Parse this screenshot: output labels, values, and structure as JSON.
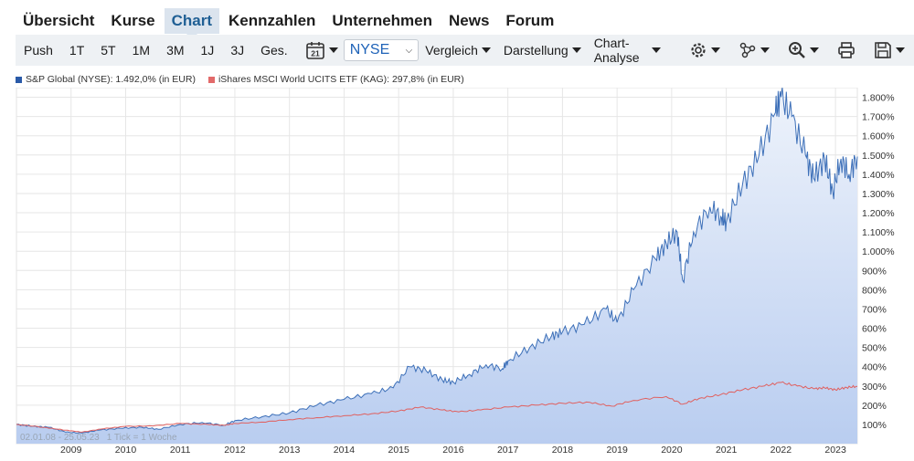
{
  "nav": {
    "items": [
      {
        "label": "Übersicht",
        "active": false
      },
      {
        "label": "Kurse",
        "active": false
      },
      {
        "label": "Chart",
        "active": true
      },
      {
        "label": "Kennzahlen",
        "active": false
      },
      {
        "label": "Unternehmen",
        "active": false
      },
      {
        "label": "News",
        "active": false
      },
      {
        "label": "Forum",
        "active": false
      }
    ]
  },
  "toolbar": {
    "ranges": [
      "Push",
      "1T",
      "5T",
      "1M",
      "3M",
      "1J",
      "3J",
      "Ges."
    ],
    "calendar_day": "21",
    "exchange": "NYSE",
    "menus": [
      "Vergleich",
      "Darstellung",
      "Chart-Analyse"
    ],
    "icons": [
      "settings-icon",
      "indicators-icon",
      "zoom-icon",
      "print-icon",
      "save-icon"
    ]
  },
  "legend": {
    "entries": [
      {
        "text": "S&P Global (NYSE): 1.492,0% (in EUR)",
        "color": "#2a5aa8"
      },
      {
        "text": "iShares MSCI World UCITS ETF (KAG): 297,8% (in EUR)",
        "color": "#e26a6a"
      }
    ]
  },
  "chart_data": {
    "type": "area",
    "date_range_label": "02.01.08 - 25.05.23",
    "tick_label": "1 Tick = 1 Woche",
    "x_ticks": [
      "2009",
      "2010",
      "2011",
      "2012",
      "2013",
      "2014",
      "2015",
      "2016",
      "2017",
      "2018",
      "2019",
      "2020",
      "2021",
      "2022",
      "2023"
    ],
    "y_ticks": [
      "100%",
      "200%",
      "300%",
      "400%",
      "500%",
      "600%",
      "700%",
      "800%",
      "900%",
      "1.000%",
      "1.100%",
      "1.200%",
      "1.300%",
      "1.400%",
      "1.500%",
      "1.600%",
      "1.700%",
      "1.800%"
    ],
    "ylim": [
      0,
      1850
    ],
    "xlim": [
      2008.0,
      2023.4
    ],
    "grid": true,
    "series": [
      {
        "name": "S&P Global (NYSE)",
        "color": "#3c6fb8",
        "fill": true,
        "points": [
          [
            2008.0,
            100
          ],
          [
            2008.3,
            90
          ],
          [
            2008.6,
            85
          ],
          [
            2008.9,
            60
          ],
          [
            2009.2,
            55
          ],
          [
            2009.5,
            70
          ],
          [
            2009.9,
            80
          ],
          [
            2010.3,
            85
          ],
          [
            2010.6,
            75
          ],
          [
            2011.0,
            100
          ],
          [
            2011.4,
            110
          ],
          [
            2011.8,
            95
          ],
          [
            2012.0,
            120
          ],
          [
            2012.5,
            140
          ],
          [
            2013.0,
            160
          ],
          [
            2013.5,
            200
          ],
          [
            2014.0,
            230
          ],
          [
            2014.5,
            260
          ],
          [
            2014.9,
            290
          ],
          [
            2015.2,
            400
          ],
          [
            2015.5,
            380
          ],
          [
            2015.8,
            330
          ],
          [
            2016.0,
            320
          ],
          [
            2016.3,
            360
          ],
          [
            2016.6,
            410
          ],
          [
            2016.9,
            390
          ],
          [
            2017.0,
            430
          ],
          [
            2017.4,
            500
          ],
          [
            2017.8,
            560
          ],
          [
            2018.0,
            580
          ],
          [
            2018.4,
            620
          ],
          [
            2018.8,
            700
          ],
          [
            2019.0,
            630
          ],
          [
            2019.3,
            800
          ],
          [
            2019.7,
            960
          ],
          [
            2019.9,
            1040
          ],
          [
            2020.1,
            1100
          ],
          [
            2020.2,
            850
          ],
          [
            2020.4,
            1100
          ],
          [
            2020.7,
            1230
          ],
          [
            2020.9,
            1180
          ],
          [
            2021.0,
            1150
          ],
          [
            2021.3,
            1350
          ],
          [
            2021.6,
            1500
          ],
          [
            2021.9,
            1720
          ],
          [
            2022.0,
            1800
          ],
          [
            2022.2,
            1700
          ],
          [
            2022.45,
            1500
          ],
          [
            2022.6,
            1380
          ],
          [
            2022.8,
            1480
          ],
          [
            2022.95,
            1310
          ],
          [
            2023.1,
            1480
          ],
          [
            2023.25,
            1400
          ],
          [
            2023.4,
            1492
          ]
        ]
      },
      {
        "name": "iShares MSCI World UCITS ETF (KAG)",
        "color": "#e0605f",
        "fill": false,
        "points": [
          [
            2008.0,
            100
          ],
          [
            2008.5,
            85
          ],
          [
            2008.9,
            70
          ],
          [
            2009.2,
            60
          ],
          [
            2009.6,
            78
          ],
          [
            2010.0,
            90
          ],
          [
            2010.5,
            92
          ],
          [
            2011.0,
            105
          ],
          [
            2011.5,
            100
          ],
          [
            2011.8,
            95
          ],
          [
            2012.0,
            105
          ],
          [
            2012.5,
            112
          ],
          [
            2013.0,
            125
          ],
          [
            2013.5,
            135
          ],
          [
            2014.0,
            145
          ],
          [
            2014.5,
            155
          ],
          [
            2015.0,
            170
          ],
          [
            2015.4,
            190
          ],
          [
            2015.8,
            175
          ],
          [
            2016.1,
            165
          ],
          [
            2016.5,
            175
          ],
          [
            2017.0,
            190
          ],
          [
            2017.5,
            200
          ],
          [
            2018.0,
            210
          ],
          [
            2018.5,
            215
          ],
          [
            2018.9,
            195
          ],
          [
            2019.3,
            225
          ],
          [
            2019.9,
            245
          ],
          [
            2020.2,
            205
          ],
          [
            2020.5,
            235
          ],
          [
            2020.9,
            255
          ],
          [
            2021.3,
            280
          ],
          [
            2021.7,
            300
          ],
          [
            2022.0,
            318
          ],
          [
            2022.3,
            300
          ],
          [
            2022.6,
            285
          ],
          [
            2022.8,
            290
          ],
          [
            2023.0,
            280
          ],
          [
            2023.2,
            292
          ],
          [
            2023.4,
            297.8
          ]
        ]
      }
    ]
  }
}
